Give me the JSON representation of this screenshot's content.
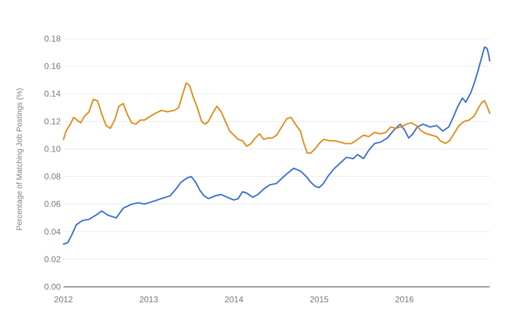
{
  "chart_data": {
    "type": "line",
    "title": "",
    "xlabel": "",
    "ylabel": "Percentage of Matching Job Postings (%)",
    "xlim": [
      2012.0,
      2017.0
    ],
    "ylim": [
      0,
      0.18
    ],
    "x_ticks": [
      "2012",
      "2013",
      "2014",
      "2015",
      "2016"
    ],
    "y_ticks": [
      "0.00",
      "0.02",
      "0.04",
      "0.06",
      "0.08",
      "0.10",
      "0.12",
      "0.14",
      "0.16",
      "0.18"
    ],
    "grid": true,
    "legend": "none",
    "series": [
      {
        "color": "#3b6ed0",
        "points": [
          [
            2012.0,
            0.031
          ],
          [
            2012.05,
            0.032
          ],
          [
            2012.1,
            0.038
          ],
          [
            2012.15,
            0.045
          ],
          [
            2012.22,
            0.048
          ],
          [
            2012.3,
            0.049
          ],
          [
            2012.38,
            0.052
          ],
          [
            2012.45,
            0.055
          ],
          [
            2012.52,
            0.052
          ],
          [
            2012.62,
            0.05
          ],
          [
            2012.7,
            0.057
          ],
          [
            2012.8,
            0.06
          ],
          [
            2012.88,
            0.061
          ],
          [
            2012.95,
            0.06
          ],
          [
            2013.05,
            0.062
          ],
          [
            2013.15,
            0.064
          ],
          [
            2013.25,
            0.066
          ],
          [
            2013.32,
            0.071
          ],
          [
            2013.38,
            0.076
          ],
          [
            2013.45,
            0.079
          ],
          [
            2013.5,
            0.08
          ],
          [
            2013.55,
            0.076
          ],
          [
            2013.6,
            0.07
          ],
          [
            2013.65,
            0.066
          ],
          [
            2013.7,
            0.064
          ],
          [
            2013.78,
            0.066
          ],
          [
            2013.85,
            0.067
          ],
          [
            2013.92,
            0.065
          ],
          [
            2014.0,
            0.063
          ],
          [
            2014.05,
            0.064
          ],
          [
            2014.1,
            0.069
          ],
          [
            2014.15,
            0.068
          ],
          [
            2014.22,
            0.065
          ],
          [
            2014.28,
            0.067
          ],
          [
            2014.35,
            0.071
          ],
          [
            2014.42,
            0.074
          ],
          [
            2014.5,
            0.075
          ],
          [
            2014.55,
            0.078
          ],
          [
            2014.62,
            0.082
          ],
          [
            2014.7,
            0.086
          ],
          [
            2014.78,
            0.084
          ],
          [
            2014.85,
            0.08
          ],
          [
            2014.9,
            0.076
          ],
          [
            2014.95,
            0.073
          ],
          [
            2015.0,
            0.072
          ],
          [
            2015.05,
            0.075
          ],
          [
            2015.1,
            0.08
          ],
          [
            2015.18,
            0.086
          ],
          [
            2015.25,
            0.09
          ],
          [
            2015.32,
            0.094
          ],
          [
            2015.4,
            0.093
          ],
          [
            2015.45,
            0.096
          ],
          [
            2015.52,
            0.093
          ],
          [
            2015.58,
            0.099
          ],
          [
            2015.65,
            0.104
          ],
          [
            2015.72,
            0.105
          ],
          [
            2015.8,
            0.108
          ],
          [
            2015.88,
            0.114
          ],
          [
            2015.95,
            0.118
          ],
          [
            2016.0,
            0.114
          ],
          [
            2016.05,
            0.108
          ],
          [
            2016.1,
            0.111
          ],
          [
            2016.15,
            0.116
          ],
          [
            2016.22,
            0.118
          ],
          [
            2016.3,
            0.116
          ],
          [
            2016.38,
            0.117
          ],
          [
            2016.45,
            0.113
          ],
          [
            2016.52,
            0.116
          ],
          [
            2016.58,
            0.124
          ],
          [
            2016.62,
            0.13
          ],
          [
            2016.68,
            0.137
          ],
          [
            2016.72,
            0.134
          ],
          [
            2016.78,
            0.141
          ],
          [
            2016.82,
            0.148
          ],
          [
            2016.86,
            0.156
          ],
          [
            2016.9,
            0.165
          ],
          [
            2016.94,
            0.174
          ],
          [
            2016.97,
            0.173
          ],
          [
            2016.99,
            0.168
          ],
          [
            2017.0,
            0.164
          ]
        ]
      },
      {
        "color": "#e08c17",
        "points": [
          [
            2012.0,
            0.107
          ],
          [
            2012.03,
            0.113
          ],
          [
            2012.08,
            0.118
          ],
          [
            2012.12,
            0.123
          ],
          [
            2012.16,
            0.121
          ],
          [
            2012.2,
            0.119
          ],
          [
            2012.25,
            0.124
          ],
          [
            2012.3,
            0.127
          ],
          [
            2012.35,
            0.136
          ],
          [
            2012.4,
            0.135
          ],
          [
            2012.45,
            0.125
          ],
          [
            2012.5,
            0.117
          ],
          [
            2012.55,
            0.115
          ],
          [
            2012.6,
            0.121
          ],
          [
            2012.65,
            0.131
          ],
          [
            2012.7,
            0.133
          ],
          [
            2012.75,
            0.125
          ],
          [
            2012.8,
            0.119
          ],
          [
            2012.85,
            0.118
          ],
          [
            2012.9,
            0.121
          ],
          [
            2012.95,
            0.121
          ],
          [
            2013.0,
            0.123
          ],
          [
            2013.08,
            0.126
          ],
          [
            2013.15,
            0.128
          ],
          [
            2013.22,
            0.127
          ],
          [
            2013.3,
            0.128
          ],
          [
            2013.35,
            0.13
          ],
          [
            2013.4,
            0.14
          ],
          [
            2013.44,
            0.148
          ],
          [
            2013.48,
            0.146
          ],
          [
            2013.52,
            0.138
          ],
          [
            2013.57,
            0.13
          ],
          [
            2013.62,
            0.12
          ],
          [
            2013.66,
            0.118
          ],
          [
            2013.7,
            0.12
          ],
          [
            2013.75,
            0.126
          ],
          [
            2013.8,
            0.131
          ],
          [
            2013.85,
            0.127
          ],
          [
            2013.9,
            0.12
          ],
          [
            2013.95,
            0.113
          ],
          [
            2014.0,
            0.11
          ],
          [
            2014.05,
            0.107
          ],
          [
            2014.1,
            0.106
          ],
          [
            2014.15,
            0.102
          ],
          [
            2014.2,
            0.104
          ],
          [
            2014.25,
            0.108
          ],
          [
            2014.3,
            0.111
          ],
          [
            2014.35,
            0.107
          ],
          [
            2014.4,
            0.108
          ],
          [
            2014.45,
            0.108
          ],
          [
            2014.5,
            0.11
          ],
          [
            2014.55,
            0.115
          ],
          [
            2014.62,
            0.122
          ],
          [
            2014.67,
            0.123
          ],
          [
            2014.72,
            0.118
          ],
          [
            2014.78,
            0.113
          ],
          [
            2014.82,
            0.104
          ],
          [
            2014.86,
            0.097
          ],
          [
            2014.9,
            0.097
          ],
          [
            2014.95,
            0.1
          ],
          [
            2015.0,
            0.104
          ],
          [
            2015.05,
            0.107
          ],
          [
            2015.12,
            0.106
          ],
          [
            2015.18,
            0.106
          ],
          [
            2015.25,
            0.105
          ],
          [
            2015.3,
            0.104
          ],
          [
            2015.38,
            0.104
          ],
          [
            2015.45,
            0.107
          ],
          [
            2015.52,
            0.11
          ],
          [
            2015.58,
            0.109
          ],
          [
            2015.65,
            0.112
          ],
          [
            2015.72,
            0.111
          ],
          [
            2015.78,
            0.112
          ],
          [
            2015.84,
            0.116
          ],
          [
            2015.9,
            0.115
          ],
          [
            2015.96,
            0.116
          ],
          [
            2016.02,
            0.118
          ],
          [
            2016.08,
            0.119
          ],
          [
            2016.14,
            0.117
          ],
          [
            2016.2,
            0.113
          ],
          [
            2016.26,
            0.111
          ],
          [
            2016.32,
            0.11
          ],
          [
            2016.38,
            0.109
          ],
          [
            2016.42,
            0.106
          ],
          [
            2016.48,
            0.104
          ],
          [
            2016.53,
            0.106
          ],
          [
            2016.58,
            0.111
          ],
          [
            2016.64,
            0.117
          ],
          [
            2016.7,
            0.12
          ],
          [
            2016.76,
            0.121
          ],
          [
            2016.82,
            0.124
          ],
          [
            2016.87,
            0.13
          ],
          [
            2016.91,
            0.134
          ],
          [
            2016.94,
            0.135
          ],
          [
            2016.97,
            0.131
          ],
          [
            2017.0,
            0.126
          ]
        ]
      }
    ]
  }
}
